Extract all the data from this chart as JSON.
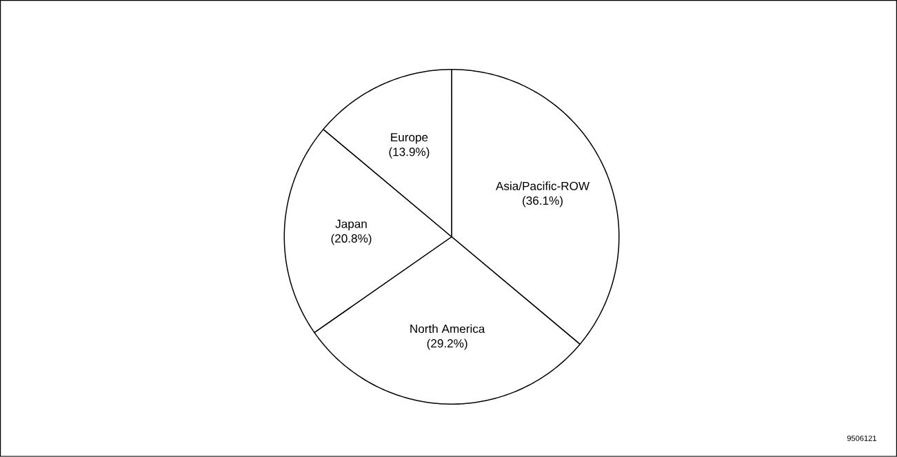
{
  "chart_data": {
    "type": "pie",
    "categories": [
      "Asia/Pacific-ROW",
      "North America",
      "Japan",
      "Europe"
    ],
    "values": [
      36.1,
      29.2,
      20.8,
      13.9
    ],
    "value_labels": [
      "(36.1%)",
      "(29.2%)",
      "(20.8%)",
      "(13.9%)"
    ],
    "colors": [
      "#ffffff",
      "#ffffff",
      "#ffffff",
      "#ffffff"
    ],
    "annotations": [
      "9506121"
    ]
  }
}
